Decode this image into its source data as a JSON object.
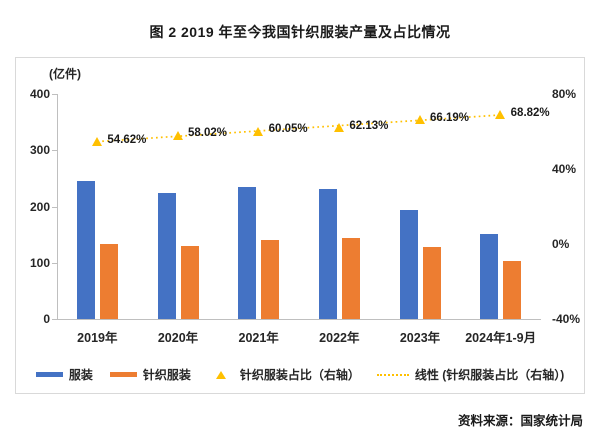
{
  "title": "图 2  2019 年至今我国针织服装产量及占比情况",
  "source": "资料来源：国家统计局",
  "colors": {
    "apparel_blue": "#4472C4",
    "knitted_orange": "#ED7D31",
    "ratio_gold": "#FFC000",
    "axis_line": "#bfbfbf",
    "box_border": "#d9d9d9",
    "text": "#262626"
  },
  "chart_data": {
    "type": "bar",
    "subtype": "combo-bar-scatter-trendline",
    "title": "图 2  2019 年至今我国针织服装产量及占比情况",
    "unit_label": "(亿件)",
    "categories": [
      "2019年",
      "2020年",
      "2021年",
      "2022年",
      "2023年",
      "2024年1-9月"
    ],
    "series": [
      {
        "name": "服装",
        "type": "bar",
        "axis": "left",
        "color": "#4472C4",
        "values": [
          245,
          224,
          235,
          232,
          194,
          151
        ]
      },
      {
        "name": "针织服装",
        "type": "bar",
        "axis": "left",
        "color": "#ED7D31",
        "values": [
          134,
          130,
          141,
          144,
          128,
          104
        ]
      },
      {
        "name": "针织服装占比（右轴）",
        "type": "scatter-triangle",
        "axis": "right",
        "color": "#FFC000",
        "values": [
          54.62,
          58.02,
          60.05,
          62.13,
          66.19,
          68.82
        ],
        "labels": [
          "54.62%",
          "58.02%",
          "60.05%",
          "62.13%",
          "66.19%",
          "68.82%"
        ]
      },
      {
        "name": "线性 (针织服装占比（右轴）)",
        "type": "dotted-trendline",
        "axis": "right",
        "color": "#FFC000"
      }
    ],
    "left_axis": {
      "min": 0,
      "max": 400,
      "ticks": [
        {
          "label": "400",
          "v": 400
        },
        {
          "label": "300",
          "v": 300
        },
        {
          "label": "200",
          "v": 200
        },
        {
          "label": "100",
          "v": 100
        },
        {
          "label": "0",
          "v": 0
        }
      ]
    },
    "right_axis": {
      "min": -40,
      "max": 80,
      "ticks": [
        {
          "label": "80%",
          "v": 80
        },
        {
          "label": "40%",
          "v": 40
        },
        {
          "label": "0%",
          "v": 0
        },
        {
          "label": "-40%",
          "v": -40
        }
      ]
    },
    "legend_position": "bottom",
    "grid": "off"
  }
}
